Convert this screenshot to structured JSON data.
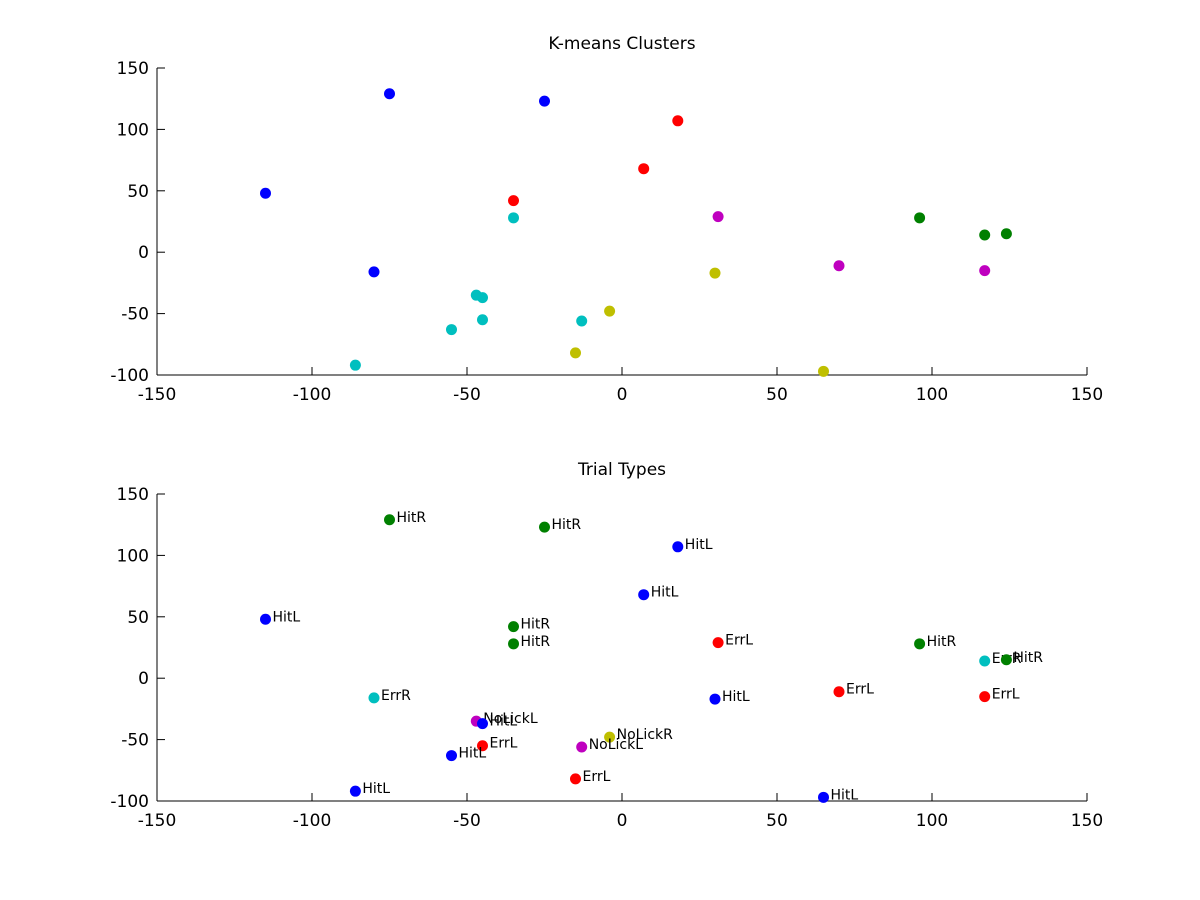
{
  "chart_data": [
    {
      "type": "scatter",
      "title": "K-means Clusters",
      "xlabel": "",
      "ylabel": "",
      "xlim": [
        -150,
        150
      ],
      "ylim": [
        -100,
        150
      ],
      "xticks": [
        "-150",
        "-100",
        "-50",
        "0",
        "50",
        "100",
        "150"
      ],
      "yticks": [
        "-100",
        "-50",
        "0",
        "50",
        "100",
        "150"
      ],
      "grid": false,
      "points": [
        {
          "x": -75,
          "y": 129,
          "color": "#0000ff"
        },
        {
          "x": -25,
          "y": 123,
          "color": "#0000ff"
        },
        {
          "x": -115,
          "y": 48,
          "color": "#0000ff"
        },
        {
          "x": -80,
          "y": -16,
          "color": "#0000ff"
        },
        {
          "x": 18,
          "y": 107,
          "color": "#ff0000"
        },
        {
          "x": 7,
          "y": 68,
          "color": "#ff0000"
        },
        {
          "x": -35,
          "y": 42,
          "color": "#ff0000"
        },
        {
          "x": -35,
          "y": 28,
          "color": "#00bfbf"
        },
        {
          "x": -47,
          "y": -35,
          "color": "#00bfbf"
        },
        {
          "x": -45,
          "y": -37,
          "color": "#00bfbf"
        },
        {
          "x": -45,
          "y": -55,
          "color": "#00bfbf"
        },
        {
          "x": -55,
          "y": -63,
          "color": "#00bfbf"
        },
        {
          "x": -13,
          "y": -56,
          "color": "#00bfbf"
        },
        {
          "x": -86,
          "y": -92,
          "color": "#00bfbf"
        },
        {
          "x": 31,
          "y": 29,
          "color": "#bf00bf"
        },
        {
          "x": 70,
          "y": -11,
          "color": "#bf00bf"
        },
        {
          "x": 117,
          "y": -15,
          "color": "#bf00bf"
        },
        {
          "x": 96,
          "y": 28,
          "color": "#008000"
        },
        {
          "x": 117,
          "y": 14,
          "color": "#008000"
        },
        {
          "x": 124,
          "y": 15,
          "color": "#008000"
        },
        {
          "x": 30,
          "y": -17,
          "color": "#bfbf00"
        },
        {
          "x": -4,
          "y": -48,
          "color": "#bfbf00"
        },
        {
          "x": -15,
          "y": -82,
          "color": "#bfbf00"
        },
        {
          "x": 65,
          "y": -97,
          "color": "#bfbf00"
        }
      ]
    },
    {
      "type": "scatter",
      "title": "Trial Types",
      "xlabel": "",
      "ylabel": "",
      "xlim": [
        -150,
        150
      ],
      "ylim": [
        -100,
        150
      ],
      "xticks": [
        "-150",
        "-100",
        "-50",
        "0",
        "50",
        "100",
        "150"
      ],
      "yticks": [
        "-100",
        "-50",
        "0",
        "50",
        "100",
        "150"
      ],
      "grid": false,
      "points": [
        {
          "x": -75,
          "y": 129,
          "color": "#008000",
          "label": "HitR"
        },
        {
          "x": -25,
          "y": 123,
          "color": "#008000",
          "label": "HitR"
        },
        {
          "x": 18,
          "y": 107,
          "color": "#0000ff",
          "label": "HitL"
        },
        {
          "x": 7,
          "y": 68,
          "color": "#0000ff",
          "label": "HitL"
        },
        {
          "x": -115,
          "y": 48,
          "color": "#0000ff",
          "label": "HitL"
        },
        {
          "x": -35,
          "y": 42,
          "color": "#008000",
          "label": "HitR"
        },
        {
          "x": -35,
          "y": 28,
          "color": "#008000",
          "label": "HitR"
        },
        {
          "x": 31,
          "y": 29,
          "color": "#ff0000",
          "label": "ErrL"
        },
        {
          "x": 96,
          "y": 28,
          "color": "#008000",
          "label": "HitR"
        },
        {
          "x": 117,
          "y": 14,
          "color": "#00bfbf",
          "label": "ErrR"
        },
        {
          "x": 124,
          "y": 15,
          "color": "#008000",
          "label": "HitR"
        },
        {
          "x": 70,
          "y": -11,
          "color": "#ff0000",
          "label": "ErrL"
        },
        {
          "x": 117,
          "y": -15,
          "color": "#ff0000",
          "label": "ErrL"
        },
        {
          "x": -80,
          "y": -16,
          "color": "#00bfbf",
          "label": "ErrR"
        },
        {
          "x": 30,
          "y": -17,
          "color": "#0000ff",
          "label": "HitL"
        },
        {
          "x": -47,
          "y": -35,
          "color": "#bf00bf",
          "label": "NoLickL"
        },
        {
          "x": -45,
          "y": -37,
          "color": "#0000ff",
          "label": "HitL"
        },
        {
          "x": -4,
          "y": -48,
          "color": "#bfbf00",
          "label": "NoLickR"
        },
        {
          "x": -45,
          "y": -55,
          "color": "#ff0000",
          "label": "ErrL"
        },
        {
          "x": -13,
          "y": -56,
          "color": "#bf00bf",
          "label": "NoLickL"
        },
        {
          "x": -55,
          "y": -63,
          "color": "#0000ff",
          "label": "HitL"
        },
        {
          "x": -15,
          "y": -82,
          "color": "#ff0000",
          "label": "ErrL"
        },
        {
          "x": -86,
          "y": -92,
          "color": "#0000ff",
          "label": "HitL"
        },
        {
          "x": 65,
          "y": -97,
          "color": "#0000ff",
          "label": "HitL"
        }
      ]
    }
  ]
}
